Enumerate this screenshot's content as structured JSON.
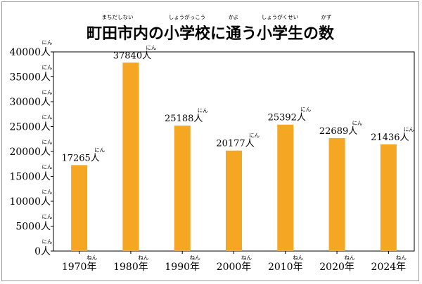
{
  "chart_data": {
    "type": "bar",
    "title": "町田市内の小学校に通う小学生の数",
    "title_ruby": [
      {
        "text": "まちだしない",
        "after_chars": 0,
        "span": 4
      },
      {
        "text": "しょうがっこう",
        "after_chars": 5,
        "span": 3
      },
      {
        "text": "かよ",
        "after_chars": 9,
        "span": 1
      },
      {
        "text": "しょうがくせい",
        "after_chars": 11,
        "span": 3
      },
      {
        "text": "かず",
        "after_chars": 15,
        "span": 1
      }
    ],
    "categories": [
      "1970年",
      "1980年",
      "1990年",
      "2000年",
      "2010年",
      "2020年",
      "2024年"
    ],
    "category_ruby": "ねん",
    "values": [
      17265,
      37840,
      25188,
      20177,
      25392,
      22689,
      21436
    ],
    "data_labels": [
      "17265人",
      "37840人",
      "25188人",
      "20177人",
      "25392人",
      "22689人",
      "21436人"
    ],
    "value_ruby": "にん",
    "y_ticks": [
      0,
      5000,
      10000,
      15000,
      20000,
      25000,
      30000,
      35000,
      40000
    ],
    "y_tick_labels": [
      "0人",
      "5000人",
      "10000人",
      "15000人",
      "20000人",
      "25000人",
      "30000人",
      "35000人",
      "40000人"
    ],
    "ylim": [
      0,
      40000
    ],
    "xlabel": "",
    "ylabel": "",
    "grid": false,
    "legend": "none",
    "colors": {
      "bar": "#F5A623",
      "plot_border": "#000000",
      "frame_border": "#9a9a9a"
    }
  }
}
